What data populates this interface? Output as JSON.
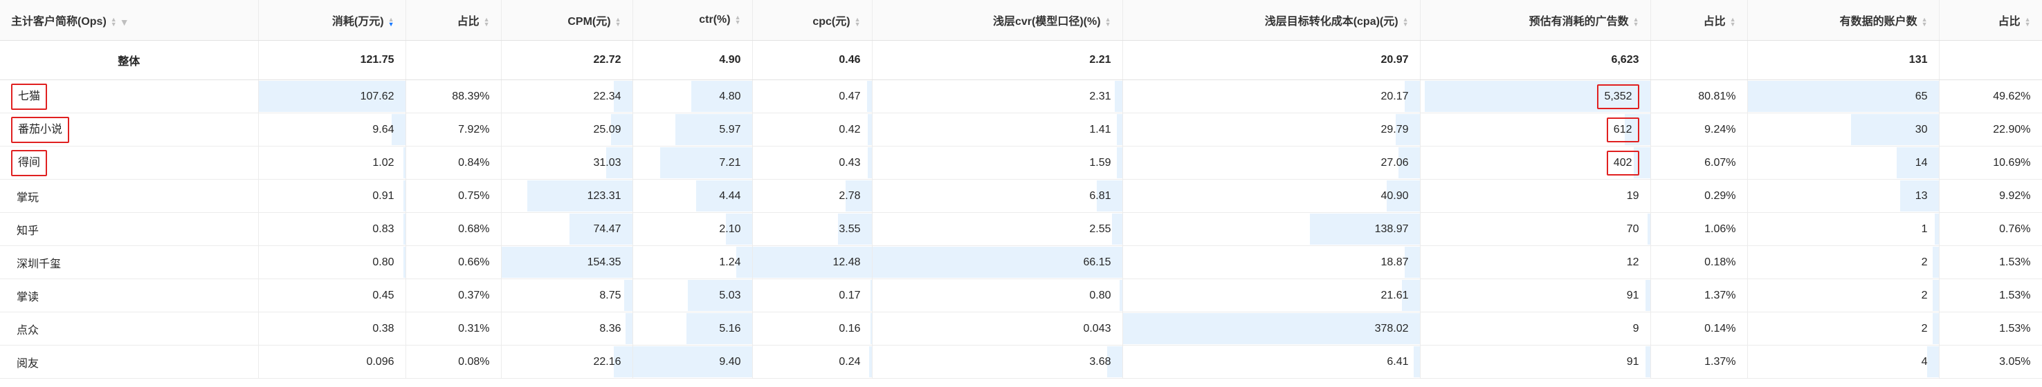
{
  "columns": [
    {
      "label": "主计客户简称(Ops)",
      "filter_icon": "filter-icon"
    },
    {
      "label": "消耗(万元)",
      "sorted": "desc"
    },
    {
      "label": "占比"
    },
    {
      "label": "CPM(元)"
    },
    {
      "label": "ctr(%)"
    },
    {
      "label": "cpc(元)"
    },
    {
      "label": "浅层cvr(模型口径)(%)"
    },
    {
      "label": "浅层目标转化成本(cpa)(元)"
    },
    {
      "label": "预估有消耗的广告数"
    },
    {
      "label": "占比"
    },
    {
      "label": "有数据的账户数"
    },
    {
      "label": "占比"
    }
  ],
  "total": [
    "整体",
    "121.75",
    "",
    "22.72",
    "4.90",
    "0.46",
    "2.21",
    "20.97",
    "6,623",
    "",
    "131",
    ""
  ],
  "rows": [
    {
      "cells": [
        "七猫",
        "107.62",
        "88.39%",
        "22.34",
        "4.80",
        "0.47",
        "2.31",
        "20.17",
        "5,352",
        "80.81%",
        "65",
        "49.62%"
      ],
      "bars": [
        0,
        1.0,
        0,
        0.14,
        0.51,
        0.04,
        0.03,
        0.05,
        0.98,
        0,
        1.0,
        0
      ],
      "highlight": [
        0,
        8
      ]
    },
    {
      "cells": [
        "番茄小说",
        "9.64",
        "7.92%",
        "25.09",
        "5.97",
        "0.42",
        "1.41",
        "29.79",
        "612",
        "9.24%",
        "30",
        "22.90%"
      ],
      "bars": [
        0,
        0.09,
        0,
        0.16,
        0.64,
        0.03,
        0.02,
        0.08,
        0.11,
        0,
        0.46,
        0
      ],
      "highlight": [
        0,
        8
      ]
    },
    {
      "cells": [
        "得间",
        "1.02",
        "0.84%",
        "31.03",
        "7.21",
        "0.43",
        "1.59",
        "27.06",
        "402",
        "6.07%",
        "14",
        "10.69%"
      ],
      "bars": [
        0,
        0.01,
        0,
        0.2,
        0.77,
        0.03,
        0.02,
        0.07,
        0.07,
        0,
        0.22,
        0
      ],
      "highlight": [
        0,
        8
      ]
    },
    {
      "cells": [
        "掌玩",
        "0.91",
        "0.75%",
        "123.31",
        "4.44",
        "2.78",
        "6.81",
        "40.90",
        "19",
        "0.29%",
        "13",
        "9.92%"
      ],
      "bars": [
        0,
        0.01,
        0,
        0.8,
        0.47,
        0.22,
        0.1,
        0.11,
        0,
        0,
        0.2,
        0
      ],
      "highlight": []
    },
    {
      "cells": [
        "知乎",
        "0.83",
        "0.68%",
        "74.47",
        "2.10",
        "3.55",
        "2.55",
        "138.97",
        "70",
        "1.06%",
        "1",
        "0.76%"
      ],
      "bars": [
        0,
        0.01,
        0,
        0.48,
        0.22,
        0.28,
        0.04,
        0.37,
        0.01,
        0,
        0.02,
        0
      ],
      "highlight": []
    },
    {
      "cells": [
        "深圳千玺",
        "0.80",
        "0.66%",
        "154.35",
        "1.24",
        "12.48",
        "66.15",
        "18.87",
        "12",
        "0.18%",
        "2",
        "1.53%"
      ],
      "bars": [
        0,
        0.01,
        0,
        1.0,
        0.13,
        1.0,
        1.0,
        0.05,
        0,
        0,
        0.03,
        0
      ],
      "highlight": []
    },
    {
      "cells": [
        "掌读",
        "0.45",
        "0.37%",
        "8.75",
        "5.03",
        "0.17",
        "0.80",
        "21.61",
        "91",
        "1.37%",
        "2",
        "1.53%"
      ],
      "bars": [
        0,
        0,
        0,
        0.06,
        0.54,
        0.01,
        0.01,
        0.06,
        0.02,
        0,
        0.03,
        0
      ],
      "highlight": []
    },
    {
      "cells": [
        "点众",
        "0.38",
        "0.31%",
        "8.36",
        "5.16",
        "0.16",
        "0.043",
        "378.02",
        "9",
        "0.14%",
        "2",
        "1.53%"
      ],
      "bars": [
        0,
        0,
        0,
        0.05,
        0.55,
        0.01,
        0,
        1.0,
        0,
        0,
        0.03,
        0
      ],
      "highlight": []
    },
    {
      "cells": [
        "阅友",
        "0.096",
        "0.08%",
        "22.16",
        "9.40",
        "0.24",
        "3.68",
        "6.41",
        "91",
        "1.37%",
        "4",
        "3.05%"
      ],
      "bars": [
        0,
        0,
        0,
        0.14,
        1.0,
        0.02,
        0.06,
        0.02,
        0.02,
        0,
        0.06,
        0
      ],
      "highlight": []
    }
  ],
  "colors": {
    "header_bg": "#fafafa",
    "bar": "#e6f2fd",
    "highlight": "#e02020",
    "sort_active": "#1677ff"
  }
}
